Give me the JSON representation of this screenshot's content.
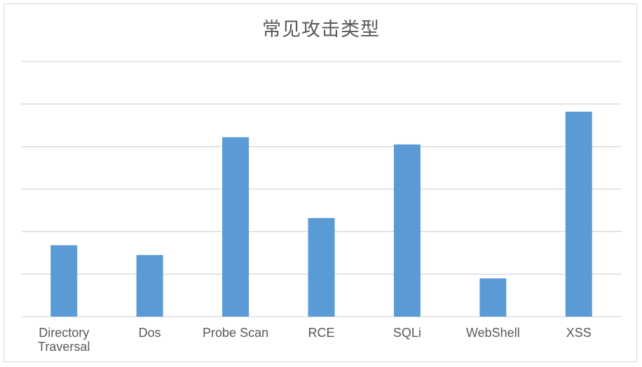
{
  "chart_data": {
    "type": "bar",
    "title": "常见攻击类型",
    "categories": [
      [
        "Directory",
        "Traversal"
      ],
      [
        "Dos"
      ],
      [
        "Probe Scan"
      ],
      [
        "RCE"
      ],
      [
        "SQLi"
      ],
      [
        "WebShell"
      ],
      [
        "XSS"
      ]
    ],
    "values": [
      1.68,
      1.45,
      4.22,
      2.32,
      4.05,
      0.9,
      4.82
    ],
    "ylim": [
      0,
      6
    ],
    "grid": true,
    "legend": "none",
    "bar_color": "#5b9bd5",
    "grid_color": "#d9d9d9"
  }
}
